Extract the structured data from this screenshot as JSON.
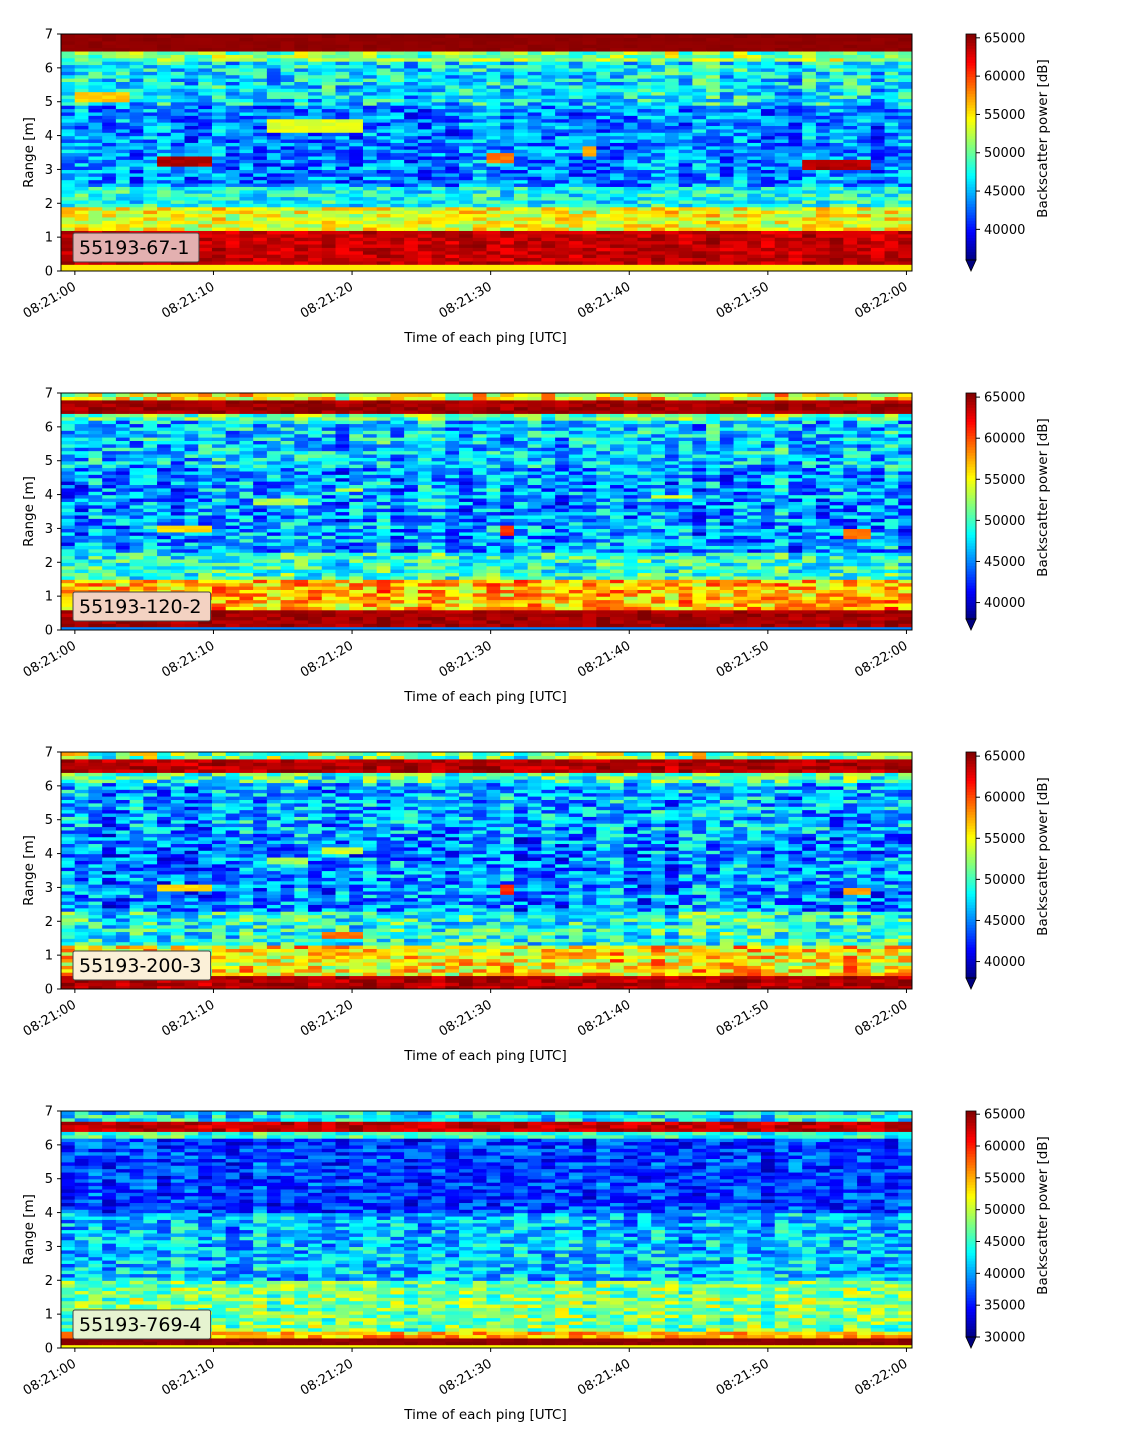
{
  "chart_data": [
    {
      "type": "heatmap",
      "label": "55193-67-1",
      "xlabel": "Time of each ping [UTC]",
      "ylabel": "Range [m]",
      "x_ticks": [
        "08:21:00",
        "08:21:10",
        "08:21:20",
        "08:21:30",
        "08:21:40",
        "08:21:50",
        "08:22:00"
      ],
      "xlim": [
        "08:21:00",
        "08:22:00"
      ],
      "y_ticks": [
        0,
        1,
        2,
        3,
        4,
        5,
        6,
        7
      ],
      "ylim": [
        0,
        7
      ],
      "colormap": "jet",
      "colorbar_label": "Backscatter power [dB]",
      "colorbar_ticks": [
        40000,
        45000,
        50000,
        55000,
        60000,
        65000
      ],
      "clim": [
        36000,
        65500
      ],
      "colorbar_extend": "min",
      "label_bg": "#e3b0b0",
      "layers": [
        {
          "y0": 6.45,
          "y1": 7.0,
          "mean": 65000,
          "spread": 300
        },
        {
          "y0": 6.2,
          "y1": 6.45,
          "mean": 51000,
          "spread": 4000
        },
        {
          "y0": 4.9,
          "y1": 6.2,
          "mean": 46500,
          "spread": 4500
        },
        {
          "y0": 2.5,
          "y1": 4.9,
          "mean": 43500,
          "spread": 4000
        },
        {
          "y0": 1.9,
          "y1": 2.5,
          "mean": 47500,
          "spread": 3500
        },
        {
          "y0": 1.2,
          "y1": 1.9,
          "mean": 54000,
          "spread": 3500
        },
        {
          "y0": 0.25,
          "y1": 1.2,
          "mean": 63500,
          "spread": 1500
        },
        {
          "y0": 0.0,
          "y1": 0.25,
          "mean": 55000,
          "spread": 0
        }
      ],
      "features": [
        {
          "t0": 6,
          "t1": 10,
          "y": 3.25,
          "h": 0.3,
          "value": 64000
        },
        {
          "t0": 52.5,
          "t1": 57,
          "y": 3.15,
          "h": 0.3,
          "value": 64000
        },
        {
          "t0": 29.5,
          "t1": 31.5,
          "y": 3.35,
          "h": 0.35,
          "value": 58500
        },
        {
          "t0": 36.5,
          "t1": 37.5,
          "y": 3.55,
          "h": 0.25,
          "value": 57000
        },
        {
          "t0": 14,
          "t1": 21,
          "y": 4.3,
          "h": 0.3,
          "value": 53500
        },
        {
          "t0": 0,
          "t1": 3.5,
          "y": 5.15,
          "h": 0.3,
          "value": 56000
        }
      ]
    },
    {
      "type": "heatmap",
      "label": "55193-120-2",
      "xlabel": "Time of each ping [UTC]",
      "ylabel": "Range [m]",
      "x_ticks": [
        "08:21:00",
        "08:21:10",
        "08:21:20",
        "08:21:30",
        "08:21:40",
        "08:21:50",
        "08:22:00"
      ],
      "xlim": [
        "08:21:00",
        "08:22:00"
      ],
      "y_ticks": [
        0,
        1,
        2,
        3,
        4,
        5,
        6,
        7
      ],
      "ylim": [
        0,
        7
      ],
      "colormap": "jet",
      "colorbar_label": "Backscatter power [dB]",
      "colorbar_ticks": [
        40000,
        45000,
        50000,
        55000,
        60000,
        65000
      ],
      "clim": [
        38000,
        65500
      ],
      "colorbar_extend": "min",
      "label_bg": "#f3d2c2",
      "layers": [
        {
          "y0": 6.8,
          "y1": 7.0,
          "mean": 55000,
          "spread": 5000
        },
        {
          "y0": 6.4,
          "y1": 6.8,
          "mean": 64500,
          "spread": 1000
        },
        {
          "y0": 6.2,
          "y1": 6.4,
          "mean": 51000,
          "spread": 4000
        },
        {
          "y0": 4.8,
          "y1": 6.2,
          "mean": 47000,
          "spread": 4500
        },
        {
          "y0": 2.3,
          "y1": 4.8,
          "mean": 45500,
          "spread": 4500
        },
        {
          "y0": 1.5,
          "y1": 2.3,
          "mean": 49500,
          "spread": 4000
        },
        {
          "y0": 0.6,
          "y1": 1.5,
          "mean": 57000,
          "spread": 4000
        },
        {
          "y0": 0.1,
          "y1": 0.6,
          "mean": 64500,
          "spread": 1000
        },
        {
          "y0": 0.0,
          "y1": 0.1,
          "mean": 45000,
          "spread": 0
        }
      ],
      "features": [
        {
          "t0": 5.5,
          "t1": 9.5,
          "y": 3.0,
          "h": 0.2,
          "value": 56000
        },
        {
          "t0": 30.5,
          "t1": 31.5,
          "y": 2.95,
          "h": 0.2,
          "value": 61000
        },
        {
          "t0": 12.5,
          "t1": 16.5,
          "y": 3.8,
          "h": 0.2,
          "value": 53000
        },
        {
          "t0": 19,
          "t1": 20.5,
          "y": 4.15,
          "h": 0.15,
          "value": 54000
        },
        {
          "t0": 41.5,
          "t1": 44.5,
          "y": 3.95,
          "h": 0.15,
          "value": 54000
        },
        {
          "t0": 55,
          "t1": 57,
          "y": 2.85,
          "h": 0.2,
          "value": 59000
        }
      ]
    },
    {
      "type": "heatmap",
      "label": "55193-200-3",
      "xlabel": "Time of each ping [UTC]",
      "ylabel": "Range [m]",
      "x_ticks": [
        "08:21:00",
        "08:21:10",
        "08:21:20",
        "08:21:30",
        "08:21:40",
        "08:21:50",
        "08:22:00"
      ],
      "xlim": [
        "08:21:00",
        "08:22:00"
      ],
      "y_ticks": [
        0,
        1,
        2,
        3,
        4,
        5,
        6,
        7
      ],
      "ylim": [
        0,
        7
      ],
      "colormap": "jet",
      "colorbar_label": "Backscatter power [dB]",
      "colorbar_ticks": [
        40000,
        45000,
        50000,
        55000,
        60000,
        65000
      ],
      "clim": [
        38000,
        65500
      ],
      "colorbar_extend": "min",
      "label_bg": "#fbf0d8",
      "layers": [
        {
          "y0": 6.8,
          "y1": 7.0,
          "mean": 52000,
          "spread": 5000
        },
        {
          "y0": 6.35,
          "y1": 6.8,
          "mean": 64000,
          "spread": 1500
        },
        {
          "y0": 6.1,
          "y1": 6.35,
          "mean": 50000,
          "spread": 4500
        },
        {
          "y0": 4.6,
          "y1": 6.1,
          "mean": 46000,
          "spread": 4500
        },
        {
          "y0": 2.3,
          "y1": 4.6,
          "mean": 45000,
          "spread": 4500
        },
        {
          "y0": 1.3,
          "y1": 2.3,
          "mean": 49000,
          "spread": 4500
        },
        {
          "y0": 0.45,
          "y1": 1.3,
          "mean": 55500,
          "spread": 4500
        },
        {
          "y0": 0.05,
          "y1": 0.45,
          "mean": 64000,
          "spread": 1500
        },
        {
          "y0": 0.0,
          "y1": 0.05,
          "mean": 45000,
          "spread": 0
        }
      ],
      "features": [
        {
          "t0": 5.5,
          "t1": 9.5,
          "y": 3.0,
          "h": 0.2,
          "value": 56000
        },
        {
          "t0": 30.5,
          "t1": 31.5,
          "y": 2.95,
          "h": 0.2,
          "value": 61000
        },
        {
          "t0": 13.5,
          "t1": 16.5,
          "y": 3.8,
          "h": 0.15,
          "value": 53000
        },
        {
          "t0": 17.5,
          "t1": 20.5,
          "y": 4.1,
          "h": 0.15,
          "value": 54000
        },
        {
          "t0": 17.5,
          "t1": 20.5,
          "y": 1.6,
          "h": 0.15,
          "value": 59000
        },
        {
          "t0": 55,
          "t1": 57,
          "y": 2.9,
          "h": 0.2,
          "value": 58000
        }
      ]
    },
    {
      "type": "heatmap",
      "label": "55193-769-4",
      "xlabel": "Time of each ping [UTC]",
      "ylabel": "Range [m]",
      "x_ticks": [
        "08:21:00",
        "08:21:10",
        "08:21:20",
        "08:21:30",
        "08:21:40",
        "08:21:50",
        "08:22:00"
      ],
      "xlim": [
        "08:21:00",
        "08:22:00"
      ],
      "y_ticks": [
        0,
        1,
        2,
        3,
        4,
        5,
        6,
        7
      ],
      "ylim": [
        0,
        7
      ],
      "colormap": "jet",
      "colorbar_label": "Backscatter power [dB]",
      "colorbar_ticks": [
        30000,
        35000,
        40000,
        45000,
        50000,
        55000,
        60000,
        65000
      ],
      "clim": [
        30000,
        65500
      ],
      "colorbar_extend": "min",
      "label_bg": "#e6f3d0",
      "layers": [
        {
          "y0": 6.65,
          "y1": 7.0,
          "mean": 43000,
          "spread": 5000
        },
        {
          "y0": 6.35,
          "y1": 6.65,
          "mean": 63000,
          "spread": 2000
        },
        {
          "y0": 6.2,
          "y1": 6.35,
          "mean": 45000,
          "spread": 4000
        },
        {
          "y0": 4.0,
          "y1": 6.2,
          "mean": 36500,
          "spread": 4000
        },
        {
          "y0": 2.0,
          "y1": 4.0,
          "mean": 41000,
          "spread": 5000
        },
        {
          "y0": 0.5,
          "y1": 2.0,
          "mean": 47500,
          "spread": 5000
        },
        {
          "y0": 0.3,
          "y1": 0.5,
          "mean": 55000,
          "spread": 4000
        },
        {
          "y0": 0.1,
          "y1": 0.3,
          "mean": 65000,
          "spread": 500
        },
        {
          "y0": 0.0,
          "y1": 0.1,
          "mean": 52000,
          "spread": 0
        }
      ],
      "features": []
    }
  ]
}
